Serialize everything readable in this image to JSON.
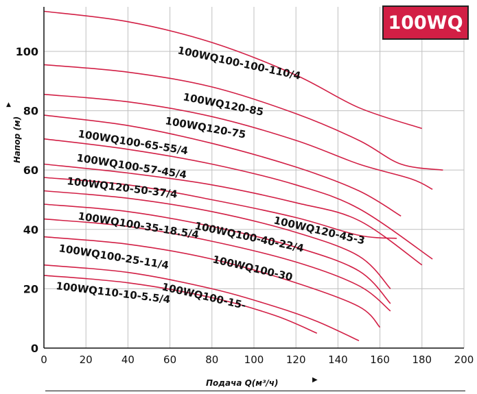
{
  "badge": "100WQ",
  "axes": {
    "ylabel": "Напор (м)",
    "xlabel": "Подача Q(м³/ч)",
    "up_arrow": "▲",
    "right_arrow": "▶"
  },
  "colors": {
    "curve": "#d21f45",
    "grid": "#bfbfbf",
    "badge_bg": "#d21f45"
  },
  "chart_data": {
    "type": "line",
    "title": "100WQ",
    "xlabel": "Подача Q(м³/ч)",
    "ylabel": "Напор (м)",
    "xlim": [
      0,
      200
    ],
    "ylim": [
      0,
      115
    ],
    "xticks": [
      0,
      20,
      40,
      60,
      80,
      100,
      120,
      140,
      160,
      180,
      200
    ],
    "yticks": [
      0,
      20,
      40,
      60,
      80,
      100
    ],
    "grid": true,
    "series": [
      {
        "name": "100WQ100-100-110/4",
        "x": [
          0,
          40,
          80,
          120,
          150,
          180
        ],
        "y": [
          113.5,
          110,
          103,
          92,
          81,
          74
        ]
      },
      {
        "name": "100WQ120-85",
        "x": [
          0,
          40,
          80,
          120,
          150,
          170,
          190
        ],
        "y": [
          95.5,
          93,
          88,
          79,
          70,
          62,
          60
        ]
      },
      {
        "name": "100WQ120-75",
        "x": [
          0,
          40,
          80,
          120,
          150,
          175,
          185
        ],
        "y": [
          85.5,
          83,
          78,
          70,
          62,
          57,
          53.5
        ]
      },
      {
        "name": "100WQ100-65-55/4",
        "x": [
          0,
          40,
          80,
          120,
          150,
          170
        ],
        "y": [
          78.5,
          75,
          69,
          61,
          53,
          44.5
        ]
      },
      {
        "name": "100WQ100-57-45/4",
        "x": [
          0,
          40,
          80,
          120,
          150,
          185
        ],
        "y": [
          70.5,
          67,
          62,
          55,
          47,
          30
        ]
      },
      {
        "name": "100WQ120-50-37/4",
        "x": [
          0,
          40,
          80,
          120,
          150,
          180
        ],
        "y": [
          62,
          59,
          55,
          49,
          43,
          28
        ]
      },
      {
        "name": "100WQ120-45-3",
        "x": [
          0,
          40,
          80,
          120,
          150,
          168
        ],
        "y": [
          57.5,
          55,
          50,
          44,
          38,
          37
        ]
      },
      {
        "name": "100WQ100-40-22/4",
        "x": [
          0,
          40,
          80,
          120,
          150,
          165
        ],
        "y": [
          53,
          50.5,
          46,
          39,
          31,
          20
        ]
      },
      {
        "name": "100WQ100-35-18.5/4",
        "x": [
          0,
          40,
          80,
          120,
          150,
          165
        ],
        "y": [
          48.5,
          46,
          41,
          34,
          26,
          15
        ]
      },
      {
        "name": "100WQ100-30",
        "x": [
          0,
          40,
          80,
          120,
          150,
          165
        ],
        "y": [
          43.5,
          41,
          36,
          29,
          21,
          12.5
        ]
      },
      {
        "name": "100WQ100-25-11/4",
        "x": [
          0,
          40,
          80,
          120,
          150,
          160
        ],
        "y": [
          37.5,
          35,
          30,
          22,
          14,
          7
        ]
      },
      {
        "name": "100WQ100-15-",
        "x": [
          0,
          40,
          80,
          110,
          130,
          150
        ],
        "y": [
          28,
          25.5,
          20,
          14,
          9,
          2.5
        ]
      },
      {
        "name": "100WQ110-10-5.5/4",
        "x": [
          0,
          40,
          80,
          110,
          130
        ],
        "y": [
          24.5,
          22,
          17,
          11,
          5
        ]
      }
    ]
  }
}
